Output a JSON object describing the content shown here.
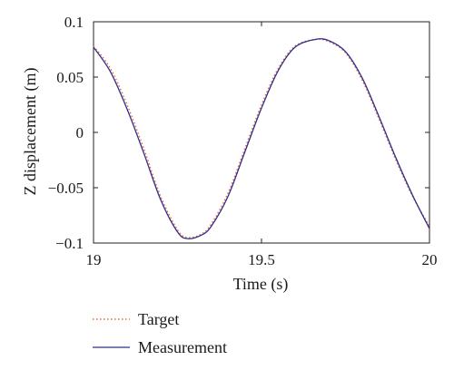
{
  "chart_data": {
    "type": "line",
    "xlabel": "Time (s)",
    "ylabel": "Z displacement (m)",
    "xlim": [
      19,
      20
    ],
    "ylim": [
      -0.1,
      0.1
    ],
    "x_ticks": [
      {
        "value": 19,
        "label": "19"
      },
      {
        "value": 19.5,
        "label": "19.5"
      },
      {
        "value": 20,
        "label": "20"
      }
    ],
    "y_ticks": [
      {
        "value": 0.1,
        "label": "0.1"
      },
      {
        "value": 0.05,
        "label": "0.05"
      },
      {
        "value": 0,
        "label": "0"
      },
      {
        "value": -0.05,
        "label": "−0.05"
      },
      {
        "value": -0.1,
        "label": "−0.1"
      }
    ],
    "grid": false,
    "legend_position": "below",
    "series": [
      {
        "name": "Target",
        "color": "#e8663a",
        "style": "dotted",
        "x": [
          19.0,
          19.05,
          19.1,
          19.15,
          19.2,
          19.25,
          19.28,
          19.32,
          19.35,
          19.4,
          19.45,
          19.5,
          19.55,
          19.6,
          19.66,
          19.7,
          19.75,
          19.8,
          19.85,
          19.9,
          19.95,
          20.0
        ],
        "y": [
          0.078,
          0.058,
          0.025,
          -0.015,
          -0.058,
          -0.088,
          -0.095,
          -0.092,
          -0.083,
          -0.055,
          -0.015,
          0.025,
          0.058,
          0.078,
          0.084,
          0.082,
          0.072,
          0.047,
          0.012,
          -0.025,
          -0.058,
          -0.085
        ]
      },
      {
        "name": "Measurement",
        "color": "#2e2e8c",
        "style": "solid",
        "x": [
          19.0,
          19.05,
          19.1,
          19.15,
          19.2,
          19.25,
          19.28,
          19.32,
          19.35,
          19.4,
          19.45,
          19.5,
          19.55,
          19.6,
          19.66,
          19.7,
          19.75,
          19.8,
          19.85,
          19.9,
          19.95,
          20.0
        ],
        "y": [
          0.077,
          0.055,
          0.021,
          -0.019,
          -0.061,
          -0.09,
          -0.096,
          -0.093,
          -0.085,
          -0.058,
          -0.018,
          0.022,
          0.056,
          0.077,
          0.084,
          0.083,
          0.073,
          0.049,
          0.014,
          -0.023,
          -0.057,
          -0.087
        ]
      }
    ]
  }
}
